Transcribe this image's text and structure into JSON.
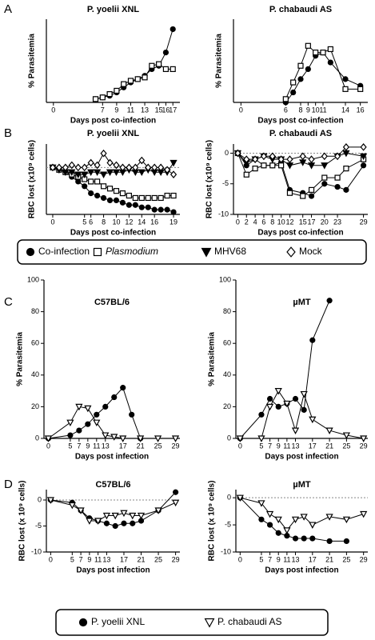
{
  "chart_data": [
    {
      "type": "line",
      "panel": "A",
      "title": "P. yoelii XNL",
      "ylabel": "% Parasitemia",
      "xlabel": "Days post co-infection",
      "xlim": [
        -1,
        18
      ],
      "xticks": [
        0,
        7,
        9,
        11,
        13,
        15,
        16,
        17
      ],
      "ylim": [
        0,
        50
      ],
      "series": [
        {
          "name": "Co-infection",
          "color": "#000000",
          "marker": "circle",
          "filled": true,
          "x": [
            6,
            7,
            8,
            9,
            10,
            11,
            12,
            13,
            14,
            15,
            16,
            17
          ],
          "values": [
            2,
            3,
            4,
            6,
            9,
            12,
            14,
            16,
            20,
            22,
            30,
            44
          ]
        },
        {
          "name": "Plasmodium",
          "color": "#000000",
          "marker": "square",
          "filled": false,
          "x": [
            6,
            7,
            8,
            9,
            10,
            11,
            12,
            13,
            14,
            15,
            16,
            17
          ],
          "values": [
            2,
            3,
            5,
            7,
            11,
            13,
            14,
            15,
            22,
            23,
            20,
            20
          ]
        }
      ]
    },
    {
      "type": "line",
      "title": "P. chabaudi AS",
      "ylabel": "% Parasitemia",
      "xlabel": "Days post co-infection",
      "xlim": [
        -1,
        17
      ],
      "xticks": [
        0,
        6,
        8,
        9,
        10,
        11,
        14,
        16
      ],
      "ylim": [
        0,
        25
      ],
      "series": [
        {
          "name": "Co-infection",
          "color": "#000000",
          "marker": "circle",
          "filled": true,
          "x": [
            6,
            7,
            8,
            9,
            10,
            11,
            12,
            14,
            16
          ],
          "values": [
            0,
            3,
            7,
            10,
            14,
            15,
            12,
            7,
            5
          ]
        },
        {
          "name": "Plasmodium",
          "color": "#000000",
          "marker": "square",
          "filled": false,
          "x": [
            6,
            7,
            8,
            9,
            10,
            11,
            12,
            14,
            16
          ],
          "values": [
            1,
            6,
            11,
            17,
            15,
            15,
            16,
            4,
            4
          ]
        }
      ]
    },
    {
      "type": "line",
      "panel": "B",
      "title": "P. yoelii XNL",
      "ylabel": "RBC lost (x10⁹ cells)",
      "xlabel": "Days post co-infection",
      "xlim": [
        -1,
        20
      ],
      "xticks": [
        0,
        5,
        6,
        8,
        10,
        12,
        14,
        16,
        19
      ],
      "ylim": [
        -10,
        5
      ],
      "zero_line": true,
      "series": [
        {
          "name": "Co-infection",
          "color": "#000000",
          "marker": "circle",
          "filled": true,
          "x": [
            0,
            1,
            2,
            3,
            4,
            5,
            6,
            7,
            8,
            9,
            10,
            11,
            12,
            13,
            14,
            15,
            16,
            17,
            18,
            19
          ],
          "values": [
            0,
            -0.5,
            -1,
            -2,
            -3,
            -4,
            -5.5,
            -6,
            -6.5,
            -7,
            -7,
            -7.5,
            -8,
            -8,
            -8.5,
            -8.5,
            -9,
            -9,
            -9,
            -9.5
          ]
        },
        {
          "name": "Plasmodium",
          "color": "#000000",
          "marker": "square",
          "filled": false,
          "x": [
            0,
            1,
            2,
            3,
            4,
            5,
            6,
            7,
            8,
            9,
            10,
            11,
            12,
            13,
            14,
            15,
            16,
            17,
            18,
            19
          ],
          "values": [
            0,
            -0.5,
            -1,
            -1.5,
            -2,
            -2.5,
            -3,
            -3,
            -4,
            -4.5,
            -5,
            -5.5,
            -6,
            -6.5,
            -6.5,
            -6.5,
            -6.5,
            -6.5,
            -6,
            -6
          ]
        },
        {
          "name": "MHV68",
          "color": "#000000",
          "marker": "triangle",
          "filled": true,
          "x": [
            0,
            1,
            2,
            3,
            4,
            5,
            6,
            7,
            8,
            9,
            10,
            11,
            12,
            13,
            14,
            15,
            16,
            17,
            18,
            19
          ],
          "values": [
            0,
            -0.5,
            -1,
            -1,
            -1.5,
            -1.5,
            -1,
            -1,
            -1.5,
            -1,
            -1,
            -1,
            -0.5,
            -1,
            -1,
            -0.5,
            -1,
            -1,
            -1,
            1
          ]
        },
        {
          "name": "Mock",
          "color": "#000000",
          "marker": "diamond",
          "filled": false,
          "x": [
            0,
            1,
            2,
            3,
            4,
            5,
            6,
            7,
            8,
            9,
            10,
            11,
            12,
            13,
            14,
            15,
            16,
            17,
            18,
            19
          ],
          "values": [
            0,
            0,
            0,
            0.5,
            0,
            0,
            1,
            0.5,
            3,
            1,
            0.5,
            0,
            0,
            0,
            1.5,
            0,
            0,
            0,
            -0.5,
            -1.5
          ]
        }
      ]
    },
    {
      "type": "line",
      "title": "P. chabaudi AS",
      "ylabel": "RBC lost (x10⁹ cells)",
      "xlabel": "Days post co-infection",
      "xlim": [
        -1,
        30
      ],
      "xticks": [
        0,
        2,
        4,
        6,
        8,
        10,
        12,
        15,
        17,
        20,
        23,
        29
      ],
      "ylim": [
        -10,
        1.5
      ],
      "yticks": [
        0,
        -5,
        -10
      ],
      "zero_line": true,
      "series": [
        {
          "name": "Co-infection",
          "color": "#000000",
          "marker": "circle",
          "filled": true,
          "x": [
            0,
            2,
            4,
            6,
            8,
            10,
            12,
            15,
            17,
            20,
            23,
            25,
            29
          ],
          "values": [
            0,
            -2,
            -1,
            -2,
            -2,
            -1.5,
            -6,
            -6.5,
            -7,
            -5,
            -5.5,
            -6,
            -2
          ]
        },
        {
          "name": "Plasmodium",
          "color": "#000000",
          "marker": "square",
          "filled": false,
          "x": [
            0,
            2,
            4,
            6,
            8,
            10,
            12,
            15,
            17,
            20,
            23,
            25,
            29
          ],
          "values": [
            0,
            -3.5,
            -2.5,
            -2,
            -2,
            -2,
            -6.5,
            -7,
            -6,
            -4,
            -4,
            -2.5,
            -1
          ]
        },
        {
          "name": "MHV68",
          "color": "#000000",
          "marker": "triangle",
          "filled": true,
          "x": [
            0,
            2,
            4,
            6,
            8,
            10,
            12,
            15,
            17,
            20,
            23,
            25,
            29
          ],
          "values": [
            0,
            -1.5,
            -1,
            -0.5,
            -1,
            -1,
            -2,
            -1.5,
            -2,
            -2,
            -0.5,
            0,
            -0.5
          ]
        },
        {
          "name": "Mock",
          "color": "#000000",
          "marker": "diamond",
          "filled": false,
          "x": [
            0,
            2,
            4,
            6,
            8,
            10,
            12,
            15,
            17,
            20,
            23,
            25,
            29
          ],
          "values": [
            0,
            -1,
            -1,
            -0.5,
            -0.5,
            -1,
            -1,
            -0.5,
            -1,
            -0.5,
            -0.5,
            1,
            1
          ]
        }
      ]
    },
    {
      "type": "line",
      "panel": "C",
      "title": "C57BL/6",
      "ylabel": "% Parasitemia",
      "xlabel": "Days post infection",
      "xlim": [
        -1,
        30
      ],
      "xticks": [
        0,
        5,
        7,
        9,
        11,
        13,
        17,
        21,
        25,
        29
      ],
      "ylim": [
        0,
        100
      ],
      "yticks": [
        0,
        20,
        40,
        60,
        80,
        100
      ],
      "series": [
        {
          "name": "P. yoelii XNL",
          "color": "#000000",
          "marker": "circle",
          "filled": true,
          "x": [
            0,
            5,
            7,
            9,
            11,
            13,
            15,
            17,
            19,
            21
          ],
          "values": [
            0,
            2,
            5,
            9,
            15,
            20,
            26,
            32,
            15,
            0
          ]
        },
        {
          "name": "P. chabaudi AS",
          "color": "#000000",
          "marker": "triangle",
          "filled": false,
          "x": [
            0,
            5,
            7,
            9,
            11,
            13,
            15,
            17,
            21,
            25,
            29
          ],
          "values": [
            0,
            10,
            20,
            19,
            10,
            2,
            1,
            0,
            0,
            0,
            0
          ]
        }
      ]
    },
    {
      "type": "line",
      "title": "µMT",
      "ylabel": "% Parasitemia",
      "xlabel": "Days post infection",
      "xlim": [
        -1,
        30
      ],
      "xticks": [
        0,
        5,
        7,
        9,
        11,
        13,
        17,
        21,
        25,
        29
      ],
      "ylim": [
        0,
        100
      ],
      "yticks": [
        0,
        20,
        40,
        60,
        80,
        100
      ],
      "series": [
        {
          "name": "P. yoelii XNL",
          "color": "#000000",
          "marker": "circle",
          "filled": true,
          "x": [
            0,
            5,
            7,
            9,
            11,
            13,
            15,
            17,
            21
          ],
          "values": [
            0,
            15,
            25,
            20,
            22,
            25,
            18,
            62,
            87
          ]
        },
        {
          "name": "P. chabaudi AS",
          "color": "#000000",
          "marker": "triangle",
          "filled": false,
          "x": [
            0,
            5,
            7,
            9,
            11,
            13,
            15,
            17,
            21,
            25,
            29
          ],
          "values": [
            0,
            0,
            20,
            30,
            22,
            5,
            28,
            12,
            5,
            2,
            0
          ]
        }
      ]
    },
    {
      "type": "line",
      "panel": "D",
      "title": "C57BL/6",
      "ylabel": "RBC lost (x 10⁹ cells)",
      "xlabel": "Days post infection",
      "xlim": [
        -1,
        30
      ],
      "xticks": [
        0,
        5,
        7,
        9,
        11,
        13,
        17,
        21,
        25,
        29
      ],
      "ylim": [
        -10,
        2
      ],
      "yticks": [
        0,
        -5,
        -10
      ],
      "zero_line": true,
      "series": [
        {
          "name": "P. yoelii XNL",
          "color": "#000000",
          "marker": "circle",
          "filled": true,
          "x": [
            0,
            5,
            7,
            9,
            11,
            13,
            15,
            17,
            19,
            21,
            25,
            29
          ],
          "values": [
            0,
            -0.5,
            -2,
            -3.5,
            -4,
            -4.5,
            -5,
            -4.5,
            -4.5,
            -4,
            -2,
            1.5
          ]
        },
        {
          "name": "P. chabaudi AS",
          "color": "#000000",
          "marker": "triangle",
          "filled": false,
          "x": [
            0,
            5,
            7,
            9,
            11,
            13,
            15,
            17,
            19,
            21,
            25,
            29
          ],
          "values": [
            0,
            -1,
            -2,
            -4,
            -4,
            -3,
            -3,
            -2.5,
            -3,
            -3,
            -2,
            -0.5
          ]
        }
      ]
    },
    {
      "type": "line",
      "title": "µMT",
      "ylabel": "RBC lost (x 10⁹ cells)",
      "xlabel": "Days post infection",
      "xlim": [
        -1,
        30
      ],
      "xticks": [
        0,
        5,
        7,
        9,
        11,
        13,
        17,
        21,
        25,
        29
      ],
      "ylim": [
        -10,
        1.5
      ],
      "yticks": [
        0,
        -5,
        -10
      ],
      "zero_line": true,
      "series": [
        {
          "name": "P. yoelii XNL",
          "color": "#000000",
          "marker": "circle",
          "filled": true,
          "x": [
            0,
            5,
            7,
            9,
            11,
            13,
            15,
            17,
            21,
            25
          ],
          "values": [
            0,
            -4,
            -5,
            -6.5,
            -7,
            -7.5,
            -7.5,
            -7.5,
            -8,
            -8
          ]
        },
        {
          "name": "P. chabaudi AS",
          "color": "#000000",
          "marker": "triangle",
          "filled": false,
          "x": [
            0,
            5,
            7,
            9,
            11,
            13,
            15,
            17,
            21,
            25,
            29
          ],
          "values": [
            0,
            -1,
            -3,
            -4,
            -6,
            -4,
            -3.5,
            -5,
            -3.5,
            -4,
            -3
          ]
        }
      ]
    }
  ]
}
